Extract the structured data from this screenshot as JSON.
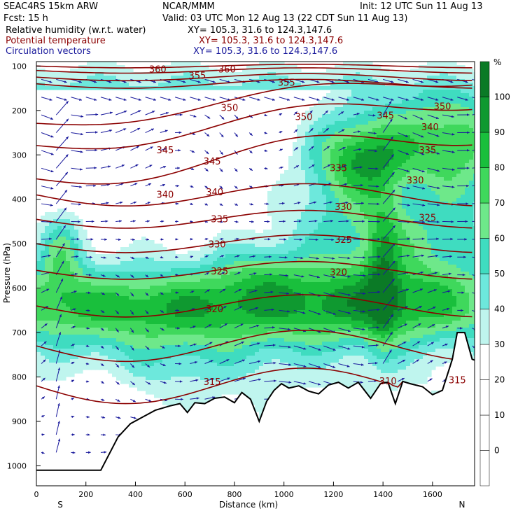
{
  "header": {
    "model": "SEAC4RS 15km ARW",
    "org": "NCAR/MMM",
    "init": "Init: 12 UTC Sun 11 Aug 13",
    "fcst": "Fcst:    15 h",
    "valid": "Valid: 03 UTC Mon 12 Aug 13 (22 CDT Sun 11 Aug 13)"
  },
  "fields": [
    {
      "name": "Relative humidity (w.r.t. water)",
      "xy": "XY= 105.3, 31.6 to 124.3,147.6",
      "color": "#000000"
    },
    {
      "name": "Potential temperature",
      "xy": "XY= 105.3, 31.6 to 124.3,147.6",
      "color": "#8b0000"
    },
    {
      "name": "Circulation vectors",
      "xy": "XY= 105.3, 31.6 to 124.3,147.6",
      "color": "#1a1a9c"
    }
  ],
  "chart_data": {
    "type": "cross-section",
    "xlabel": "Distance (km)",
    "ylabel": "Pressure (hPa)",
    "x_ticks": [
      0,
      200,
      400,
      600,
      800,
      1000,
      1200,
      1400,
      1600
    ],
    "x_tick_labels": [
      "0",
      "200",
      "400",
      "600",
      "800",
      "1000",
      "1200",
      "1400",
      "1600"
    ],
    "y_ticks": [
      100,
      200,
      300,
      400,
      500,
      600,
      700,
      800,
      900,
      1000
    ],
    "y_tick_labels": [
      "100",
      "200",
      "300",
      "400",
      "500",
      "600",
      "700",
      "800",
      "900",
      "1000"
    ],
    "xlim": [
      0,
      1770
    ],
    "ylim": [
      1045,
      90
    ],
    "x_endpoint_labels": [
      "S",
      "N"
    ],
    "colorbar": {
      "unit": "%",
      "levels": [
        -10,
        0,
        10,
        20,
        30,
        40,
        50,
        60,
        70,
        80,
        90,
        100,
        110
      ],
      "tick_labels": [
        "0",
        "10",
        "20",
        "30",
        "40",
        "50",
        "60",
        "70",
        "80",
        "90",
        "100"
      ],
      "tick_values": [
        0,
        10,
        20,
        30,
        40,
        50,
        60,
        70,
        80,
        90,
        100
      ],
      "colors": [
        "#ffffff",
        "#ffffff",
        "#ffffff",
        "#ffffff",
        "#bff5ee",
        "#6de8dc",
        "#3fdcc0",
        "#6ee88a",
        "#3fd85c",
        "#19bf3c",
        "#0f9930",
        "#0b7a26"
      ]
    },
    "terrain": [
      [
        0,
        1010
      ],
      [
        80,
        1010
      ],
      [
        200,
        1010
      ],
      [
        260,
        1010
      ],
      [
        330,
        935
      ],
      [
        380,
        905
      ],
      [
        430,
        890
      ],
      [
        480,
        875
      ],
      [
        540,
        865
      ],
      [
        580,
        860
      ],
      [
        610,
        880
      ],
      [
        640,
        858
      ],
      [
        680,
        860
      ],
      [
        720,
        848
      ],
      [
        760,
        845
      ],
      [
        800,
        858
      ],
      [
        830,
        835
      ],
      [
        865,
        850
      ],
      [
        900,
        900
      ],
      [
        930,
        855
      ],
      [
        960,
        830
      ],
      [
        990,
        815
      ],
      [
        1020,
        825
      ],
      [
        1060,
        820
      ],
      [
        1100,
        832
      ],
      [
        1140,
        838
      ],
      [
        1180,
        818
      ],
      [
        1220,
        812
      ],
      [
        1260,
        825
      ],
      [
        1300,
        812
      ],
      [
        1350,
        848
      ],
      [
        1390,
        815
      ],
      [
        1420,
        812
      ],
      [
        1450,
        860
      ],
      [
        1480,
        810
      ],
      [
        1510,
        815
      ],
      [
        1560,
        822
      ],
      [
        1600,
        840
      ],
      [
        1640,
        830
      ],
      [
        1680,
        760
      ],
      [
        1700,
        700
      ],
      [
        1730,
        700
      ],
      [
        1760,
        760
      ],
      [
        1770,
        762
      ]
    ],
    "theta_labels": [
      {
        "text": "360",
        "x": 490,
        "p": 108
      },
      {
        "text": "360",
        "x": 770,
        "p": 108
      },
      {
        "text": "355",
        "x": 650,
        "p": 122
      },
      {
        "text": "355",
        "x": 1010,
        "p": 138
      },
      {
        "text": "350",
        "x": 780,
        "p": 195
      },
      {
        "text": "350",
        "x": 1080,
        "p": 215
      },
      {
        "text": "350",
        "x": 1640,
        "p": 192
      },
      {
        "text": "345",
        "x": 1410,
        "p": 212
      },
      {
        "text": "345",
        "x": 520,
        "p": 290
      },
      {
        "text": "345",
        "x": 710,
        "p": 315
      },
      {
        "text": "340",
        "x": 1590,
        "p": 238
      },
      {
        "text": "340",
        "x": 520,
        "p": 390
      },
      {
        "text": "340",
        "x": 720,
        "p": 385
      },
      {
        "text": "335",
        "x": 1580,
        "p": 290
      },
      {
        "text": "335",
        "x": 1220,
        "p": 330
      },
      {
        "text": "335",
        "x": 740,
        "p": 445
      },
      {
        "text": "330",
        "x": 1530,
        "p": 358
      },
      {
        "text": "330",
        "x": 1240,
        "p": 418
      },
      {
        "text": "330",
        "x": 730,
        "p": 502
      },
      {
        "text": "325",
        "x": 1580,
        "p": 442
      },
      {
        "text": "325",
        "x": 1240,
        "p": 492
      },
      {
        "text": "325",
        "x": 740,
        "p": 563
      },
      {
        "text": "320",
        "x": 1220,
        "p": 565
      },
      {
        "text": "320",
        "x": 720,
        "p": 648
      },
      {
        "text": "315",
        "x": 710,
        "p": 812
      },
      {
        "text": "310",
        "x": 1420,
        "p": 810
      },
      {
        "text": "315",
        "x": 1700,
        "p": 808
      }
    ]
  }
}
